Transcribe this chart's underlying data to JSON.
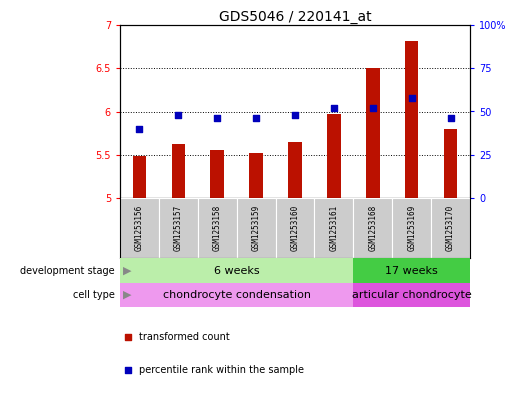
{
  "title": "GDS5046 / 220141_at",
  "samples": [
    "GSM1253156",
    "GSM1253157",
    "GSM1253158",
    "GSM1253159",
    "GSM1253160",
    "GSM1253161",
    "GSM1253168",
    "GSM1253169",
    "GSM1253170"
  ],
  "transformed_counts": [
    5.48,
    5.62,
    5.55,
    5.52,
    5.65,
    5.97,
    6.5,
    6.82,
    5.8
  ],
  "percentile_ranks": [
    40,
    48,
    46,
    46,
    48,
    52,
    52,
    58,
    46
  ],
  "ylim_left": [
    5.0,
    7.0
  ],
  "ylim_right": [
    0,
    100
  ],
  "yticks_left": [
    5.0,
    5.5,
    6.0,
    6.5,
    7.0
  ],
  "ytick_labels_left": [
    "5",
    "5.5",
    "6",
    "6.5",
    "7"
  ],
  "yticks_right": [
    0,
    25,
    50,
    75,
    100
  ],
  "ytick_labels_right": [
    "0",
    "25",
    "50",
    "75",
    "100%"
  ],
  "bar_color": "#bb1100",
  "dot_color": "#0000bb",
  "grid_color": "black",
  "dev_stage_groups": [
    {
      "label": "6 weeks",
      "start": 0,
      "end": 6,
      "color": "#bbeeaa"
    },
    {
      "label": "17 weeks",
      "start": 6,
      "end": 9,
      "color": "#44cc44"
    }
  ],
  "cell_type_groups": [
    {
      "label": "chondrocyte condensation",
      "start": 0,
      "end": 6,
      "color": "#ee99ee"
    },
    {
      "label": "articular chondrocyte",
      "start": 6,
      "end": 9,
      "color": "#dd55dd"
    }
  ],
  "legend_items": [
    {
      "label": "transformed count",
      "color": "#bb1100",
      "marker": "s"
    },
    {
      "label": "percentile rank within the sample",
      "color": "#0000bb",
      "marker": "s"
    }
  ],
  "bar_width": 0.35,
  "dot_size": 25,
  "label_fontsize": 7,
  "tick_fontsize": 7,
  "sample_fontsize": 5.5,
  "row_fontsize": 8,
  "title_fontsize": 10
}
